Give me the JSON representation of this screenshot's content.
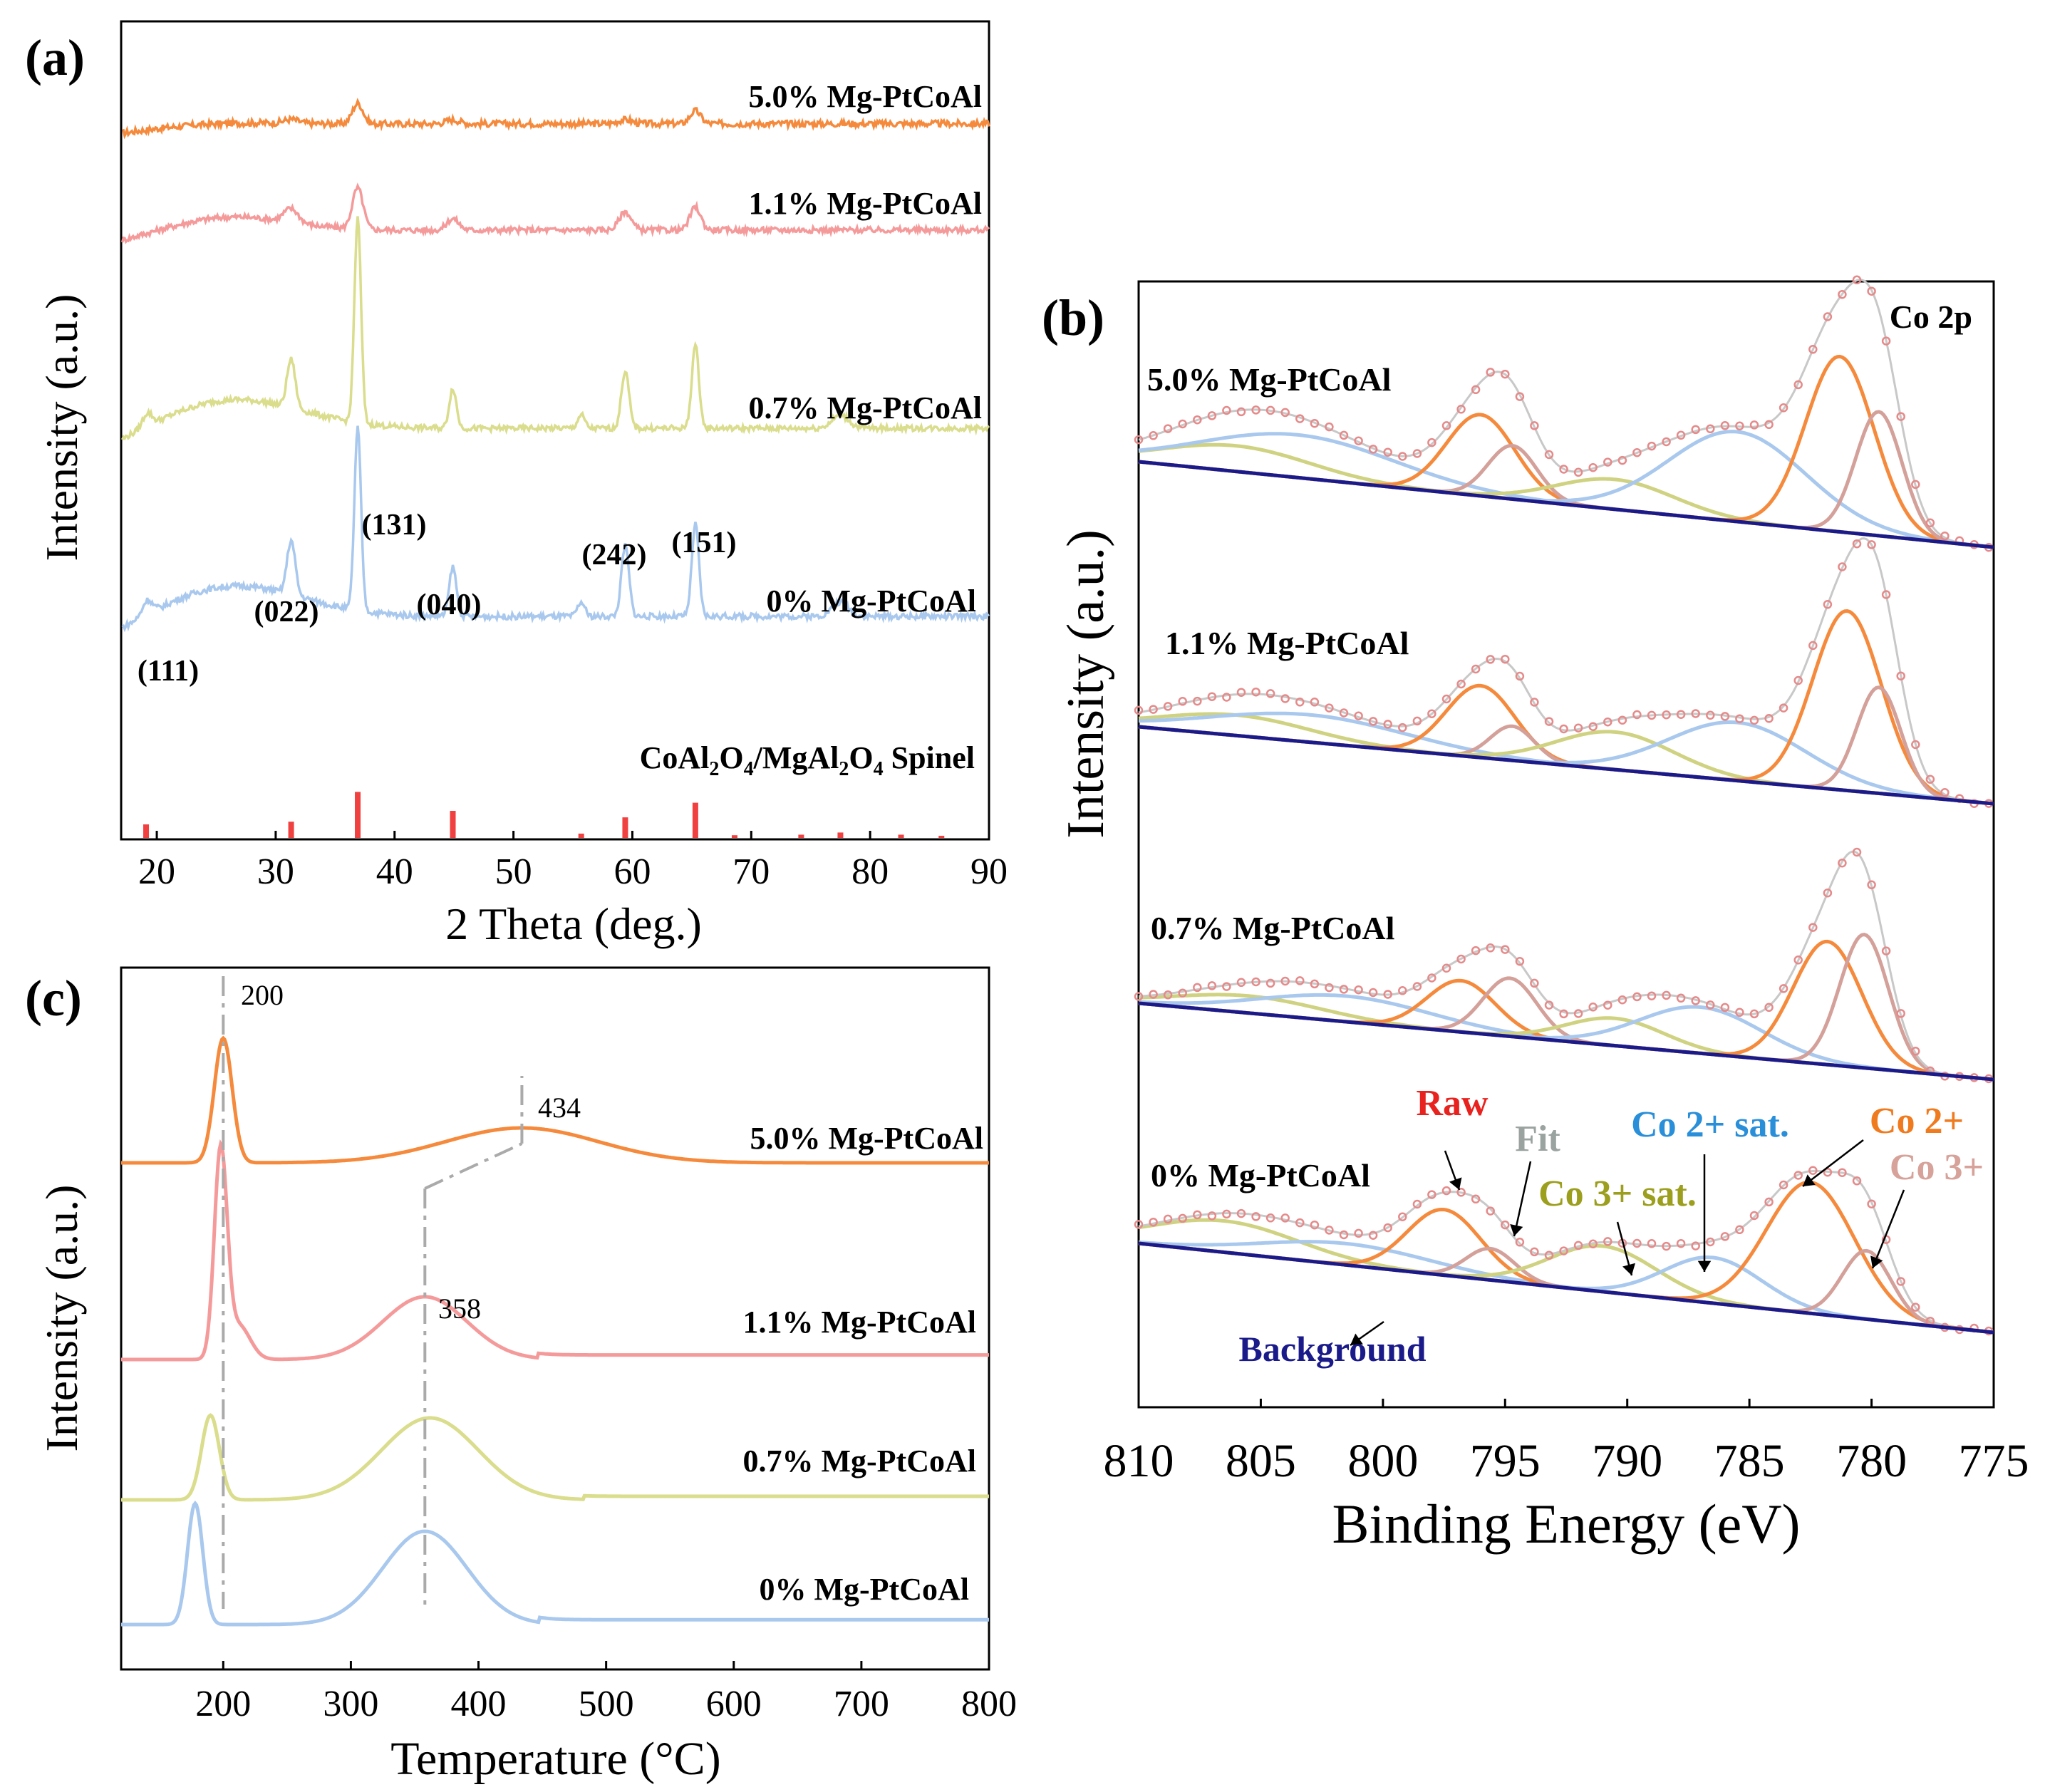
{
  "chart_data": [
    {
      "panel": "(a)",
      "type": "line",
      "title": "",
      "xlabel": "2 Theta (deg.)",
      "ylabel": "Intensity (a.u.)",
      "xlim": [
        17,
        90
      ],
      "xticks": [
        20,
        30,
        40,
        50,
        60,
        70,
        80,
        90
      ],
      "grid": false,
      "series": [
        {
          "name": "5.0% Mg-PtCoAl",
          "color": "#f58a3c",
          "baseline": 0.04,
          "peaks": [
            [
              31.3,
              0.03,
              0.6
            ],
            [
              36.9,
              0.16,
              0.45
            ],
            [
              44.9,
              0.03,
              0.6
            ],
            [
              59.4,
              0.03,
              0.6
            ],
            [
              65.3,
              0.1,
              0.45
            ]
          ],
          "humps": [
            [
              26,
              0.02,
              5
            ]
          ]
        },
        {
          "name": "1.1% Mg-PtCoAl",
          "color": "#f59a9a",
          "baseline": 0.06,
          "peaks": [
            [
              31.3,
              0.12,
              0.6
            ],
            [
              36.9,
              0.36,
              0.45
            ],
            [
              44.9,
              0.1,
              0.5
            ],
            [
              59.4,
              0.16,
              0.5
            ],
            [
              65.3,
              0.2,
              0.45
            ]
          ],
          "humps": [
            [
              26,
              0.14,
              5
            ]
          ]
        },
        {
          "name": "0.7% Mg-PtCoAl",
          "color": "#d9dd8c",
          "baseline": 0.1,
          "peaks": [
            [
              19.2,
              0.12,
              0.4
            ],
            [
              31.3,
              0.44,
              0.35
            ],
            [
              36.9,
              1.85,
              0.28
            ],
            [
              44.9,
              0.36,
              0.3
            ],
            [
              55.7,
              0.12,
              0.3
            ],
            [
              59.4,
              0.52,
              0.32
            ],
            [
              65.3,
              0.75,
              0.3
            ],
            [
              77.5,
              0.12,
              0.7
            ]
          ],
          "humps": [
            [
              26,
              0.3,
              6
            ]
          ]
        },
        {
          "name": "0% Mg-PtCoAl",
          "color": "#a9c8ee",
          "baseline": 0.1,
          "peaks": [
            [
              19.2,
              0.12,
              0.4
            ],
            [
              31.3,
              0.46,
              0.35
            ],
            [
              36.9,
              1.55,
              0.28
            ],
            [
              44.9,
              0.42,
              0.3
            ],
            [
              55.7,
              0.12,
              0.3
            ],
            [
              59.4,
              0.6,
              0.32
            ],
            [
              65.3,
              0.78,
              0.3
            ],
            [
              77.5,
              0.12,
              0.7
            ]
          ],
          "humps": [
            [
              26,
              0.3,
              6
            ]
          ]
        }
      ],
      "annotations": [
        "(111)",
        "(022)",
        "(131)",
        "(040)",
        "(242)",
        "(151)"
      ],
      "reference": {
        "name_parts": [
          "CoAl",
          "2",
          "O",
          "4",
          "/MgAl",
          "2",
          "O",
          "4",
          " Spinel"
        ],
        "color": "#f04040",
        "positions": [
          19.1,
          31.3,
          36.9,
          44.9,
          55.7,
          59.4,
          65.3,
          68.6,
          74.2,
          77.5,
          82.6,
          86.0
        ],
        "heights": [
          0.25,
          0.3,
          0.85,
          0.5,
          0.08,
          0.38,
          0.65,
          0.05,
          0.06,
          0.1,
          0.06,
          0.04
        ]
      }
    },
    {
      "panel": "(b)",
      "type": "line",
      "title": "Co 2p",
      "xlabel": "Binding Energy (eV)",
      "ylabel": "Intensity (a.u.)",
      "xlim": [
        810,
        775
      ],
      "xticks": [
        810,
        805,
        800,
        795,
        790,
        785,
        780,
        775
      ],
      "grid": false,
      "samples": [
        {
          "name": "5.0% Mg-PtCoAl",
          "components": {
            "co2_main_high": [
              796.0,
              0.38,
              1.4
            ],
            "co3_high": [
              794.7,
              0.25,
              1.0
            ],
            "co3_sat_high": [
              790.5,
              0.14,
              2.4
            ],
            "co2_sat_high": [
              803.5,
              0.2,
              4.0
            ],
            "co3_sat_low": [
              806.0,
              0.12,
              3.0
            ],
            "co2_main_low": [
              781.3,
              0.82,
              1.4
            ],
            "co3_low": [
              779.7,
              0.58,
              0.95
            ],
            "co2_sat_low": [
              785.5,
              0.42,
              2.8
            ]
          }
        },
        {
          "name": "1.1% Mg-PtCoAl",
          "components": {
            "co2_main_high": [
              796.0,
              0.42,
              1.4
            ],
            "co3_high": [
              794.7,
              0.2,
              0.9
            ],
            "co3_sat_high": [
              790.5,
              0.22,
              2.4
            ],
            "co2_sat_high": [
              803.0,
              0.16,
              4.0
            ],
            "co3_sat_low": [
              806.0,
              0.12,
              3.0
            ],
            "co2_main_low": [
              781.0,
              1.05,
              1.4
            ],
            "co3_low": [
              779.7,
              0.62,
              0.9
            ],
            "co2_sat_low": [
              785.5,
              0.34,
              2.8
            ]
          }
        },
        {
          "name": "0.7% Mg-PtCoAl",
          "components": {
            "co2_main_high": [
              796.8,
              0.3,
              1.4
            ],
            "co3_high": [
              794.8,
              0.34,
              1.1
            ],
            "co3_sat_high": [
              790.5,
              0.16,
              2.0
            ],
            "co2_sat_high": [
              801.5,
              0.15,
              3.5
            ],
            "co3_sat_low": [
              805.5,
              0.1,
              3.0
            ],
            "co2_main_low": [
              781.8,
              0.72,
              1.4
            ],
            "co3_low": [
              780.3,
              0.78,
              1.0
            ],
            "co2_sat_low": [
              787.0,
              0.27,
              2.5
            ]
          }
        },
        {
          "name": "0% Mg-PtCoAl",
          "components": {
            "co2_main_high": [
              797.5,
              0.46,
              1.5
            ],
            "co3_high": [
              795.6,
              0.22,
              1.0
            ],
            "co3_sat_high": [
              791.0,
              0.32,
              2.2
            ],
            "co2_sat_high": [
              801.5,
              0.15,
              3.5
            ],
            "co3_sat_low": [
              806.5,
              0.22,
              3.0
            ],
            "co2_main_low": [
              782.5,
              0.92,
              1.8
            ],
            "co3_low": [
              780.2,
              0.48,
              1.0
            ],
            "co2_sat_low": [
              786.5,
              0.32,
              2.0
            ]
          }
        }
      ],
      "legend_labels": {
        "raw": "Raw",
        "fit": "Fit",
        "co2_sat": "Co 2+ sat.",
        "co3_sat": "Co 3+ sat.",
        "co2": "Co 2+",
        "co3": "Co 3+",
        "background": "Background"
      },
      "colors": {
        "raw": "#e58a8a",
        "fit": "#c8c8c8",
        "co2": "#f58a3c",
        "co3": "#d4a09a",
        "co3_sat": "#cfd280",
        "co2_sat": "#a9c8ee",
        "background": "#1a1a8a"
      }
    },
    {
      "panel": "(c)",
      "type": "line",
      "title": "",
      "xlabel": "Temperature (°C)",
      "ylabel": "Intensity (a.u.)",
      "xlim": [
        120,
        800
      ],
      "xticks": [
        200,
        300,
        400,
        500,
        600,
        700,
        800
      ],
      "grid": false,
      "series": [
        {
          "name": "5.0% Mg-PtCoAl",
          "color": "#f58a3c",
          "peaks": [
            [
              200,
              1.0,
              7
            ],
            [
              434,
              0.28,
              60
            ]
          ],
          "step": [
            null,
            0
          ]
        },
        {
          "name": "1.1% Mg-PtCoAl",
          "color": "#f59a9a",
          "peaks": [
            [
              198,
              1.8,
              5
            ],
            [
              212,
              0.3,
              9
            ],
            [
              358,
              0.55,
              33
            ]
          ],
          "step": [
            447,
            0.04
          ]
        },
        {
          "name": "0.7% Mg-PtCoAl",
          "color": "#d9dd8c",
          "peaks": [
            [
              190,
              0.95,
              7
            ],
            [
              362,
              0.92,
              38
            ]
          ],
          "step": [
            483,
            0.04
          ]
        },
        {
          "name": "0% Mg-PtCoAl",
          "color": "#a9c8ee",
          "peaks": [
            [
              178,
              1.0,
              6
            ],
            [
              358,
              0.77,
              33
            ]
          ],
          "step": [
            448,
            0.04
          ]
        }
      ],
      "annotations": [
        "200",
        "434",
        "358"
      ]
    }
  ]
}
